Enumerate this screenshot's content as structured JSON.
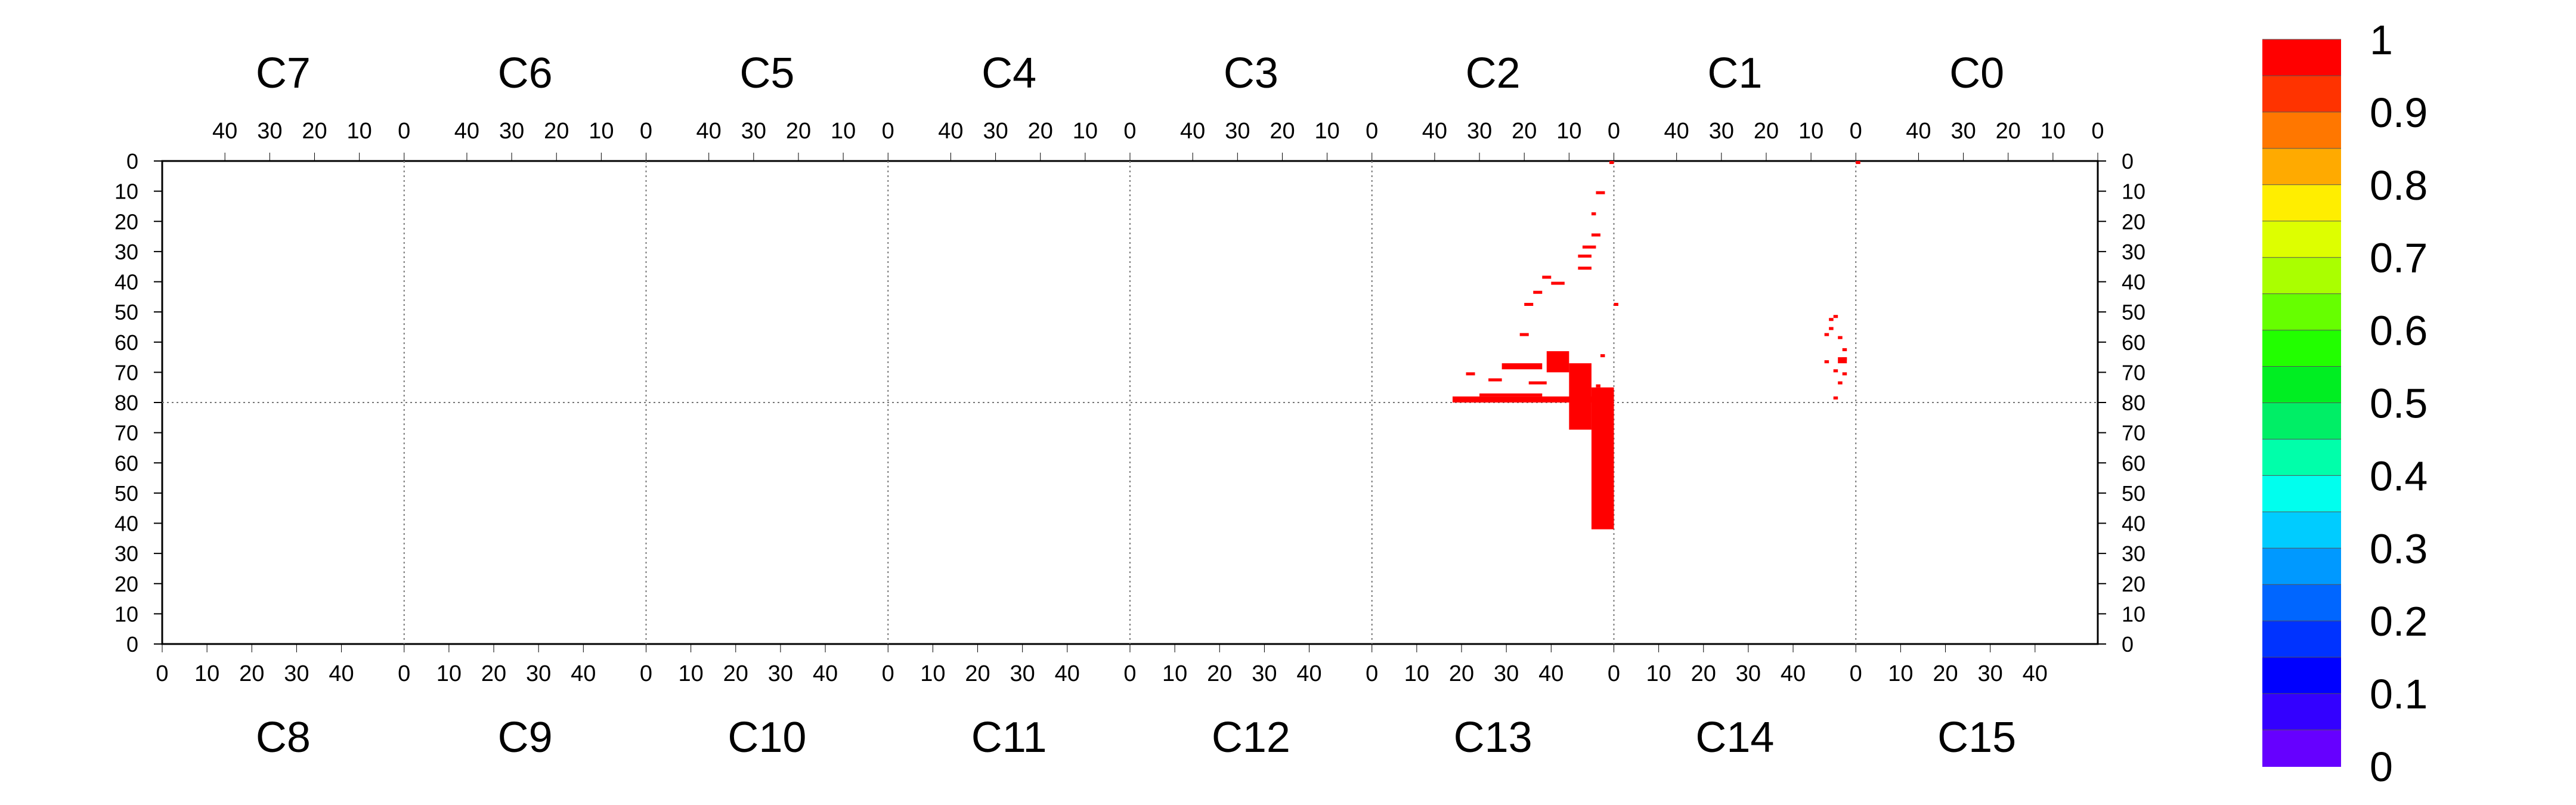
{
  "chart_data": {
    "type": "heatmap",
    "title": "",
    "xlabel": "",
    "ylabel": "",
    "top_labels": [
      "C7",
      "C6",
      "C5",
      "C4",
      "C3",
      "C2",
      "C1",
      "C0"
    ],
    "bottom_labels": [
      "C8",
      "C9",
      "C10",
      "C11",
      "C12",
      "C13",
      "C14",
      "C15"
    ],
    "top_ticks": [
      "40",
      "30",
      "20",
      "10",
      "0"
    ],
    "bottom_ticks": [
      "0",
      "10",
      "20",
      "30",
      "40"
    ],
    "y_ticks_upper": [
      "0",
      "10",
      "20",
      "30",
      "40",
      "50",
      "60",
      "70",
      "80"
    ],
    "y_ticks_lower": [
      "70",
      "60",
      "50",
      "40",
      "30",
      "20",
      "10",
      "0"
    ],
    "color_scale": {
      "labels": [
        "1",
        "0.9",
        "0.8",
        "0.7",
        "0.6",
        "0.5",
        "0.4",
        "0.3",
        "0.2",
        "0.1",
        "0"
      ],
      "colors": [
        "#ff0000",
        "#ff3300",
        "#ff7700",
        "#ffaa00",
        "#ffee00",
        "#ddff00",
        "#aaff00",
        "#66ff00",
        "#22ff00",
        "#00ee22",
        "#00ee66",
        "#00ffaa",
        "#00ffee",
        "#00ccff",
        "#0099ff",
        "#0066ff",
        "#0033ff",
        "#0000ff",
        "#3300ff",
        "#6600ff"
      ]
    },
    "cell_color": "#ff0000",
    "cells": [
      {
        "chip": "C2",
        "x": 0,
        "y": 48,
        "w": 1,
        "h": 1
      },
      {
        "chip": "C1",
        "x": 5,
        "y": 52,
        "w": 1,
        "h": 1
      },
      {
        "chip": "C1",
        "x": 3,
        "y": 63,
        "w": 1,
        "h": 1
      },
      {
        "chip": "C1",
        "x": 4,
        "y": 66,
        "w": 2,
        "h": 2
      },
      {
        "chip": "C1",
        "x": 7,
        "y": 67,
        "w": 1,
        "h": 1
      },
      {
        "chip": "C2",
        "x": 3,
        "y": 65,
        "w": 1,
        "h": 1
      },
      {
        "chip": "C1",
        "x": 3,
        "y": 71,
        "w": 1,
        "h": 1
      },
      {
        "chip": "C2",
        "x": 4,
        "y": 75,
        "w": 1,
        "h": 1
      },
      {
        "chip": "C2",
        "x": 36,
        "y": 79,
        "w": 36,
        "h": 2
      },
      {
        "chip": "C2",
        "x": 30,
        "y": 78,
        "w": 14,
        "h": 1
      },
      {
        "chip": "C2",
        "x": 4,
        "y": 78,
        "w": 4,
        "h": 1
      },
      {
        "chip": "C1",
        "x": 5,
        "y": 79,
        "w": 1,
        "h": 1
      },
      {
        "chip": "C2",
        "x": 5,
        "y": 76,
        "w": 5,
        "h": 47
      },
      {
        "chip": "C2",
        "x": 10,
        "y": 68,
        "w": 5,
        "h": 22
      },
      {
        "chip": "C2",
        "x": 15,
        "y": 64,
        "w": 5,
        "h": 7
      },
      {
        "chip": "C2",
        "x": 25,
        "y": 68,
        "w": 9,
        "h": 2
      },
      {
        "chip": "C2",
        "x": 33,
        "y": 71,
        "w": 2,
        "h": 1
      },
      {
        "chip": "C2",
        "x": 28,
        "y": 73,
        "w": 3,
        "h": 1
      },
      {
        "chip": "C2",
        "x": 19,
        "y": 74,
        "w": 4,
        "h": 1
      },
      {
        "chip": "C1",
        "x": 4,
        "y": 74,
        "w": 1,
        "h": 1
      },
      {
        "chip": "C1",
        "x": 5,
        "y": 70,
        "w": 1,
        "h": 1
      },
      {
        "chip": "C1",
        "x": 3,
        "y": 66,
        "w": 1,
        "h": 1
      },
      {
        "chip": "C1",
        "x": 4,
        "y": 59,
        "w": 1,
        "h": 1
      },
      {
        "chip": "C1",
        "x": 6,
        "y": 56,
        "w": 1,
        "h": 1
      },
      {
        "chip": "C1",
        "x": 7,
        "y": 58,
        "w": 1,
        "h": 1
      },
      {
        "chip": "C1",
        "x": 6,
        "y": 53,
        "w": 1,
        "h": 1
      },
      {
        "chip": "C2",
        "x": 21,
        "y": 58,
        "w": 2,
        "h": 1
      },
      {
        "chip": "C2",
        "x": 20,
        "y": 48,
        "w": 2,
        "h": 1
      },
      {
        "chip": "C2",
        "x": 18,
        "y": 44,
        "w": 2,
        "h": 1
      },
      {
        "chip": "C2",
        "x": 14,
        "y": 41,
        "w": 3,
        "h": 1
      },
      {
        "chip": "C2",
        "x": 16,
        "y": 39,
        "w": 2,
        "h": 1
      },
      {
        "chip": "C2",
        "x": 8,
        "y": 36,
        "w": 3,
        "h": 1
      },
      {
        "chip": "C2",
        "x": 8,
        "y": 32,
        "w": 3,
        "h": 1
      },
      {
        "chip": "C2",
        "x": 7,
        "y": 29,
        "w": 3,
        "h": 1
      },
      {
        "chip": "C2",
        "x": 5,
        "y": 25,
        "w": 2,
        "h": 1
      },
      {
        "chip": "C2",
        "x": 5,
        "y": 18,
        "w": 1,
        "h": 1
      },
      {
        "chip": "C2",
        "x": 4,
        "y": 11,
        "w": 2,
        "h": 1
      },
      {
        "chip": "C2",
        "x": 1,
        "y": 1,
        "w": 1,
        "h": 1
      },
      {
        "chip": "C1",
        "x": 0,
        "y": 1,
        "w": 1,
        "h": 1
      }
    ]
  }
}
